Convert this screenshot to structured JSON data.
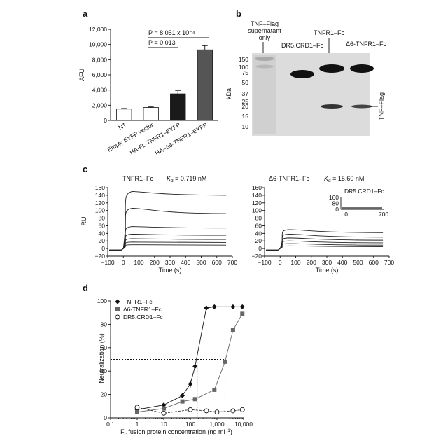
{
  "panels": {
    "a": {
      "label": "a",
      "stats": [
        "P = 8.051 x 10⁻⁴",
        "P = 0.013"
      ]
    },
    "b": {
      "label": "b",
      "lanes": [
        "TNF–Flag supernatant only",
        "DR5.CRD1–Fc",
        "TNFR1–Fc",
        "Δ6-TNFR1–Fc"
      ],
      "ylabel": "kDa",
      "markers": [
        150,
        100,
        75,
        50,
        37,
        25,
        20,
        15,
        10
      ],
      "band_label": "TNF–Flag"
    },
    "c": {
      "label": "c",
      "left_title": "TNFR1–Fc",
      "left_kd": "K",
      "left_kd_sub": "d",
      "left_kd_value": " = 0.719 nM",
      "right_title": "Δ6-TNFR1–Fc",
      "right_kd": "K",
      "right_kd_sub": "d",
      "right_kd_value": " = 15.60 nM",
      "inset_title": "DR5.CRD1–Fc",
      "ylabel": "RU",
      "xlabel": "Time (s)"
    },
    "d": {
      "label": "d"
    }
  },
  "chart_data": [
    {
      "type": "bar",
      "panel": "a",
      "categories": [
        "NT",
        "Empty EYFP vector",
        "HA-FL-TNFR1–EYFP",
        "HA–Δ6-TNFR1–EYFP"
      ],
      "values": [
        1500,
        1700,
        3500,
        9300
      ],
      "errors": [
        80,
        80,
        450,
        550
      ],
      "colors": [
        "#ffffff",
        "#ffffff",
        "#1a1a1a",
        "#555555"
      ],
      "ylabel": "AFU",
      "ylim": [
        0,
        12000
      ],
      "yticks": [
        0,
        2000,
        4000,
        6000,
        8000,
        10000,
        12000
      ],
      "ytick_labels": [
        "0",
        "2,000",
        "4,000",
        "6,000",
        "8,000",
        "10,000",
        "12,000"
      ]
    },
    {
      "type": "line",
      "panel": "c-left",
      "ylabel": "RU",
      "xlabel": "Time (s)",
      "xlim": [
        -100,
        700
      ],
      "ylim": [
        -20,
        160
      ],
      "xticks": [
        -100,
        0,
        100,
        200,
        300,
        400,
        500,
        600,
        700
      ],
      "yticks": [
        -20,
        0,
        20,
        40,
        60,
        80,
        100,
        120,
        140,
        160
      ],
      "injection_start": 0,
      "injection_end": 60,
      "peak_levels": [
        150,
        106,
        58,
        38,
        26,
        17,
        10
      ],
      "end_levels": [
        140,
        92,
        54,
        35,
        24,
        16,
        9
      ]
    },
    {
      "type": "line",
      "panel": "c-right",
      "ylabel": "RU",
      "xlabel": "Time (s)",
      "xlim": [
        -100,
        700
      ],
      "ylim": [
        -20,
        160
      ],
      "xticks": [
        -100,
        0,
        100,
        200,
        300,
        400,
        500,
        600,
        700
      ],
      "yticks": [
        -20,
        0,
        20,
        40,
        60,
        80,
        100,
        120,
        140,
        160
      ],
      "injection_start": 0,
      "injection_end": 60,
      "peak_levels": [
        50,
        38,
        28,
        20,
        13,
        7
      ],
      "end_levels": [
        42,
        30,
        22,
        15,
        9,
        5
      ],
      "inset": {
        "title": "DR5.CRD1–Fc",
        "yticks": [
          0,
          80,
          160
        ],
        "xticks": [
          0,
          700
        ],
        "ylim": [
          0,
          160
        ],
        "xlim": [
          -100,
          700
        ]
      }
    },
    {
      "type": "line",
      "panel": "d",
      "ylabel": "Neutralization (%)",
      "xlabel": "Fc fusion protein concentration (ng ml⁻¹)",
      "xscale": "log",
      "xlim": [
        0.1,
        10000
      ],
      "ylim": [
        0,
        100
      ],
      "xticks": [
        0.1,
        1,
        10,
        100,
        1000,
        10000
      ],
      "xtick_labels": [
        "0.1",
        "1",
        "10",
        "100",
        "1,000",
        "10,000"
      ],
      "yticks": [
        0,
        20,
        40,
        60,
        80,
        100
      ],
      "threshold": 50,
      "threshold_x": [
        180,
        2000
      ],
      "legend": "top-left",
      "series": [
        {
          "name": "TNFR1–Fc",
          "marker": "diamond",
          "dash": false,
          "x": [
            1,
            10,
            50,
            100,
            150,
            400,
            800,
            4000,
            9000
          ],
          "y": [
            7,
            11,
            19,
            29,
            44,
            94,
            95,
            95,
            95
          ],
          "err": [
            0,
            0,
            2,
            3,
            0,
            0,
            0,
            0,
            0
          ]
        },
        {
          "name": "Δ6-TNFR1–Fc",
          "marker": "square",
          "dash": false,
          "x": [
            1,
            10,
            50,
            150,
            800,
            2000,
            4000,
            9000
          ],
          "y": [
            5,
            8,
            14,
            16,
            24,
            48,
            75,
            89
          ],
          "err": [
            0,
            0,
            0,
            0,
            0,
            0,
            0,
            0
          ]
        },
        {
          "name": "DR5.CRD1–Fc",
          "marker": "circle",
          "dash": true,
          "x": [
            1,
            10,
            100,
            400,
            1000,
            4000,
            9000
          ],
          "y": [
            9,
            4,
            7,
            6,
            5,
            6,
            7
          ],
          "err": [
            0,
            0,
            0,
            0,
            0,
            0,
            0
          ]
        }
      ]
    }
  ]
}
